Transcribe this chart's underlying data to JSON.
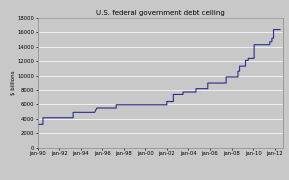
{
  "title": "U.S. federal government debt ceiling",
  "ylabel": "$ billions",
  "background_color": "#c8c8c8",
  "line_color": "#2b2b8c",
  "line_width": 0.8,
  "xlim_start": 1990,
  "xlim_end": 2012.8,
  "ylim": [
    0,
    18000
  ],
  "yticks": [
    0,
    2000,
    4000,
    6000,
    8000,
    10000,
    12000,
    14000,
    16000,
    18000
  ],
  "xtick_labels": [
    "jan-90",
    "jan-92",
    "jan-94",
    "jan-96",
    "jan-98",
    "jan-00",
    "jan-02",
    "jan-04",
    "jan-06",
    "jan-08",
    "jan-10",
    "jan-12"
  ],
  "xtick_values": [
    1990,
    1992,
    1994,
    1996,
    1998,
    2000,
    2002,
    2004,
    2006,
    2008,
    2010,
    2012
  ],
  "data": [
    [
      1990.0,
      3195
    ],
    [
      1990.08,
      3195
    ],
    [
      1990.08,
      3230
    ],
    [
      1990.5,
      3230
    ],
    [
      1990.5,
      4145
    ],
    [
      1991.8,
      4145
    ],
    [
      1991.8,
      4145
    ],
    [
      1993.3,
      4145
    ],
    [
      1993.3,
      4900
    ],
    [
      1993.5,
      4900
    ],
    [
      1995.3,
      4900
    ],
    [
      1995.3,
      4900
    ],
    [
      1995.5,
      5500
    ],
    [
      1997.3,
      5500
    ],
    [
      1997.3,
      5950
    ],
    [
      1997.5,
      5950
    ],
    [
      2002.0,
      5950
    ],
    [
      2002.0,
      6400
    ],
    [
      2002.6,
      6400
    ],
    [
      2002.6,
      7384
    ],
    [
      2003.5,
      7384
    ],
    [
      2003.5,
      7720
    ],
    [
      2004.7,
      7720
    ],
    [
      2004.7,
      8184
    ],
    [
      2005.8,
      8184
    ],
    [
      2005.8,
      8965
    ],
    [
      2007.5,
      8965
    ],
    [
      2007.5,
      9815
    ],
    [
      2008.6,
      9815
    ],
    [
      2008.6,
      10615
    ],
    [
      2008.75,
      10615
    ],
    [
      2008.75,
      11315
    ],
    [
      2009.3,
      11315
    ],
    [
      2009.3,
      12104
    ],
    [
      2009.55,
      12104
    ],
    [
      2009.55,
      12394
    ],
    [
      2010.1,
      12394
    ],
    [
      2010.1,
      14294
    ],
    [
      2011.55,
      14294
    ],
    [
      2011.55,
      14694
    ],
    [
      2011.75,
      14694
    ],
    [
      2011.75,
      15194
    ],
    [
      2011.9,
      15194
    ],
    [
      2011.9,
      16394
    ],
    [
      2012.5,
      16394
    ]
  ]
}
